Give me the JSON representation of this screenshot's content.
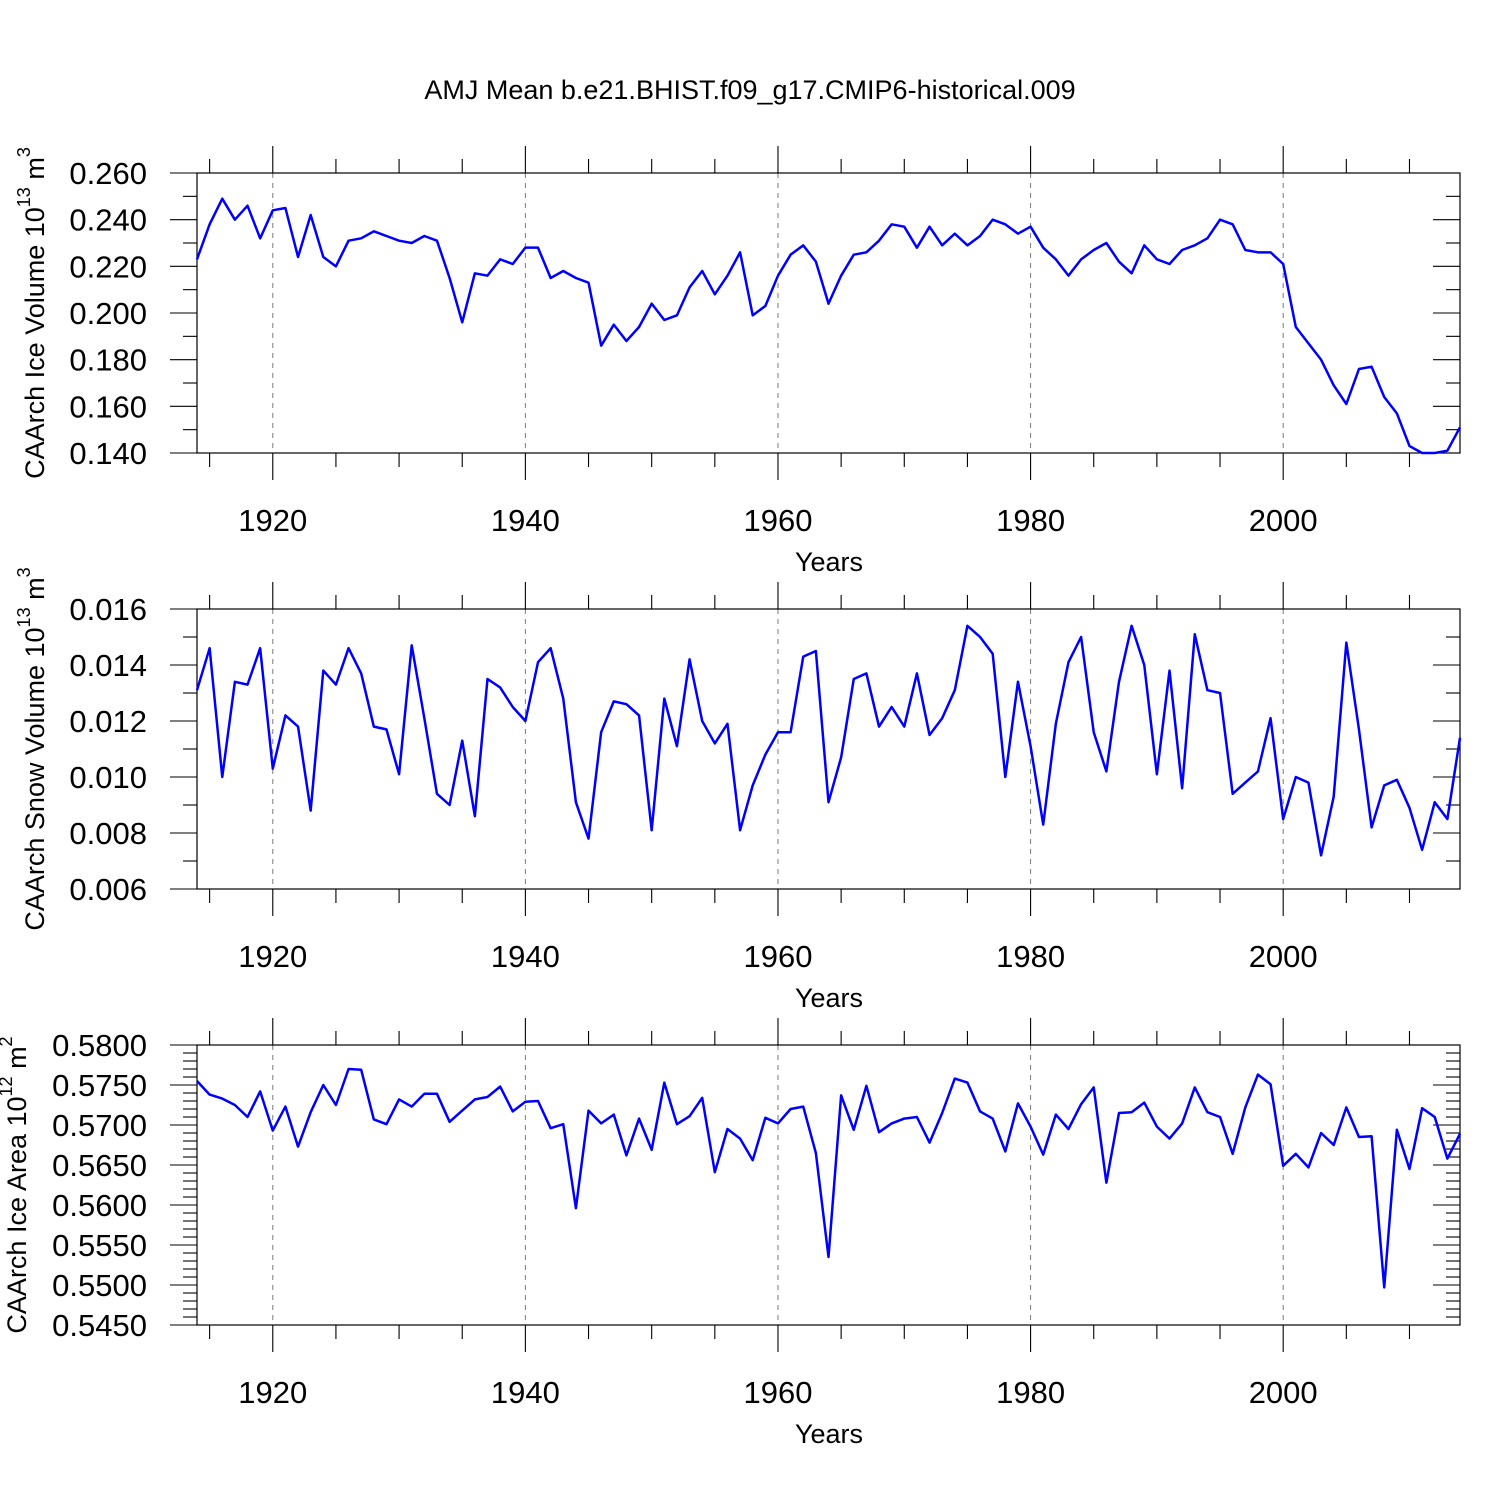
{
  "chart_data": [
    {
      "type": "line",
      "title": "AMJ Mean b.e21.BHIST.f09_g17.CMIP6-historical.009",
      "ylabel": "CAArch Ice Volume",
      "yunit_base": "10",
      "yunit_exp": "13",
      "yunit_sym": "m",
      "yunit_sym_exp": "3",
      "xlabel": "Years",
      "xlim": [
        1914,
        2014
      ],
      "ylim": [
        0.14,
        0.26
      ],
      "xticks": [
        1920,
        1940,
        1960,
        1980,
        2000
      ],
      "xtick_labels": [
        "1920",
        "1940",
        "1960",
        "1980",
        "2000"
      ],
      "yticks": [
        0.14,
        0.16,
        0.18,
        0.2,
        0.22,
        0.24,
        0.26
      ],
      "ytick_labels": [
        "0.140",
        "0.160",
        "0.180",
        "0.200",
        "0.220",
        "0.240",
        "0.260"
      ],
      "ymid": [
        0.15,
        0.17,
        0.19,
        0.21,
        0.23,
        0.25
      ],
      "x_start": 1914,
      "values": [
        0.223,
        0.238,
        0.249,
        0.24,
        0.246,
        0.232,
        0.244,
        0.245,
        0.224,
        0.242,
        0.224,
        0.22,
        0.231,
        0.232,
        0.235,
        0.233,
        0.231,
        0.23,
        0.233,
        0.231,
        0.215,
        0.196,
        0.217,
        0.216,
        0.223,
        0.221,
        0.228,
        0.228,
        0.215,
        0.218,
        0.215,
        0.213,
        0.186,
        0.195,
        0.188,
        0.194,
        0.204,
        0.197,
        0.199,
        0.211,
        0.218,
        0.208,
        0.216,
        0.226,
        0.199,
        0.203,
        0.216,
        0.225,
        0.229,
        0.222,
        0.204,
        0.216,
        0.225,
        0.226,
        0.231,
        0.238,
        0.237,
        0.228,
        0.237,
        0.229,
        0.234,
        0.229,
        0.233,
        0.24,
        0.238,
        0.234,
        0.237,
        0.228,
        0.223,
        0.216,
        0.223,
        0.227,
        0.23,
        0.222,
        0.217,
        0.229,
        0.223,
        0.221,
        0.227,
        0.229,
        0.232,
        0.24,
        0.238,
        0.227,
        0.226,
        0.226,
        0.221,
        0.194,
        0.187,
        0.18,
        0.169,
        0.161,
        0.176,
        0.177,
        0.164,
        0.157,
        0.143,
        0.14,
        0.14,
        0.141,
        0.151
      ]
    },
    {
      "type": "line",
      "title": "",
      "ylabel": "CAArch Snow Volume",
      "yunit_base": "10",
      "yunit_exp": "13",
      "yunit_sym": "m",
      "yunit_sym_exp": "3",
      "xlabel": "Years",
      "xlim": [
        1914,
        2014
      ],
      "ylim": [
        0.006,
        0.016
      ],
      "xticks": [
        1920,
        1940,
        1960,
        1980,
        2000
      ],
      "xtick_labels": [
        "1920",
        "1940",
        "1960",
        "1980",
        "2000"
      ],
      "yticks": [
        0.006,
        0.008,
        0.01,
        0.012,
        0.014,
        0.016
      ],
      "ytick_labels": [
        "0.006",
        "0.008",
        "0.010",
        "0.012",
        "0.014",
        "0.016"
      ],
      "ymid": [
        0.007,
        0.009,
        0.011,
        0.013,
        0.015
      ],
      "x_start": 1914,
      "values": [
        0.0131,
        0.0146,
        0.01,
        0.0134,
        0.0133,
        0.0146,
        0.0103,
        0.0122,
        0.0118,
        0.0088,
        0.0138,
        0.0133,
        0.0146,
        0.0137,
        0.0118,
        0.0117,
        0.0101,
        0.0147,
        0.0121,
        0.0094,
        0.009,
        0.0113,
        0.0086,
        0.0135,
        0.0132,
        0.0125,
        0.012,
        0.0141,
        0.0146,
        0.0128,
        0.0091,
        0.0078,
        0.0116,
        0.0127,
        0.0126,
        0.0122,
        0.0081,
        0.0128,
        0.0111,
        0.0142,
        0.012,
        0.0112,
        0.0119,
        0.0081,
        0.0097,
        0.0108,
        0.0116,
        0.0116,
        0.0143,
        0.0145,
        0.0091,
        0.0107,
        0.0135,
        0.0137,
        0.0118,
        0.0125,
        0.0118,
        0.0137,
        0.0115,
        0.0121,
        0.0131,
        0.0154,
        0.015,
        0.0144,
        0.01,
        0.0134,
        0.0111,
        0.0083,
        0.0119,
        0.0141,
        0.015,
        0.0116,
        0.0102,
        0.0134,
        0.0154,
        0.014,
        0.0101,
        0.0138,
        0.0096,
        0.0151,
        0.0131,
        0.013,
        0.0094,
        0.0098,
        0.0102,
        0.0121,
        0.0085,
        0.01,
        0.0098,
        0.0072,
        0.0093,
        0.0148,
        0.0117,
        0.0082,
        0.0097,
        0.0099,
        0.0089,
        0.0074,
        0.0091,
        0.0085,
        0.0114
      ]
    },
    {
      "type": "line",
      "title": "",
      "ylabel": "CAArch Ice Area",
      "yunit_base": "10",
      "yunit_exp": "12",
      "yunit_sym": "m",
      "yunit_sym_exp": "2",
      "xlabel": "Years",
      "xlim": [
        1914,
        2014
      ],
      "ylim": [
        0.545,
        0.58
      ],
      "xticks": [
        1920,
        1940,
        1960,
        1980,
        2000
      ],
      "xtick_labels": [
        "1920",
        "1940",
        "1960",
        "1980",
        "2000"
      ],
      "yticks": [
        0.545,
        0.55,
        0.555,
        0.56,
        0.565,
        0.57,
        0.575,
        0.58
      ],
      "ytick_labels": [
        "0.5450",
        "0.5500",
        "0.5550",
        "0.5600",
        "0.5650",
        "0.5700",
        "0.5750",
        "0.5800"
      ],
      "ymid": [
        0.546,
        0.547,
        0.548,
        0.549,
        0.551,
        0.552,
        0.553,
        0.554,
        0.556,
        0.557,
        0.558,
        0.559,
        0.561,
        0.562,
        0.563,
        0.564,
        0.566,
        0.567,
        0.568,
        0.569,
        0.571,
        0.572,
        0.573,
        0.574,
        0.576,
        0.577,
        0.578,
        0.579
      ],
      "x_start": 1914,
      "values": [
        0.5755,
        0.5738,
        0.5733,
        0.5725,
        0.571,
        0.5742,
        0.5693,
        0.5723,
        0.5673,
        0.5716,
        0.575,
        0.5725,
        0.577,
        0.5769,
        0.5707,
        0.5701,
        0.5732,
        0.5723,
        0.5739,
        0.5739,
        0.5704,
        0.5718,
        0.5732,
        0.5735,
        0.5748,
        0.5717,
        0.5729,
        0.573,
        0.5696,
        0.5701,
        0.5596,
        0.5718,
        0.5702,
        0.5713,
        0.5662,
        0.5708,
        0.5669,
        0.5753,
        0.5701,
        0.5711,
        0.5734,
        0.5641,
        0.5695,
        0.5683,
        0.5656,
        0.5709,
        0.5702,
        0.572,
        0.5723,
        0.5665,
        0.5535,
        0.5737,
        0.5694,
        0.5749,
        0.5691,
        0.5702,
        0.5708,
        0.571,
        0.5678,
        0.5715,
        0.5758,
        0.5753,
        0.5717,
        0.5708,
        0.5667,
        0.5727,
        0.5698,
        0.5663,
        0.5713,
        0.5695,
        0.5726,
        0.5747,
        0.5628,
        0.5715,
        0.5716,
        0.5728,
        0.5698,
        0.5683,
        0.5702,
        0.5747,
        0.5716,
        0.571,
        0.5664,
        0.5722,
        0.5763,
        0.5751,
        0.5649,
        0.5664,
        0.5647,
        0.569,
        0.5675,
        0.5722,
        0.5685,
        0.5686,
        0.5497,
        0.5694,
        0.5645,
        0.5721,
        0.571,
        0.5658,
        0.5689
      ]
    }
  ]
}
